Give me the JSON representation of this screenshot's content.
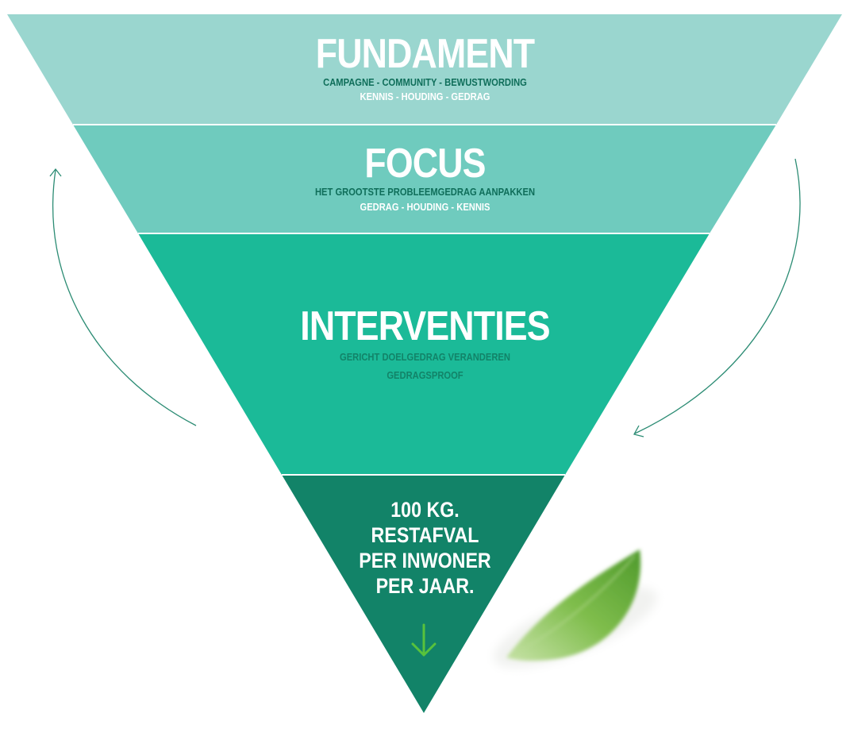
{
  "colors": {
    "tier1": "#9ad6cf",
    "tier2": "#6fcbbe",
    "tier3": "#1bba98",
    "tier4": "#128368",
    "arrow": "#2c8c74",
    "subtext_dark": "#0f6e5a",
    "subtext_white": "#ffffff",
    "down_arrow": "#58c23c",
    "leaf": "#6fae3c"
  },
  "tiers": [
    {
      "title": "FUNDAMENT",
      "lines": [
        "CAMPAGNE  -  COMMUNITY  -  BEWUSTWORDING",
        "KENNIS - HOUDING - GEDRAG"
      ]
    },
    {
      "title": "FOCUS",
      "lines": [
        "HET GROOTSTE PROBLEEMGEDRAG AANPAKKEN",
        "GEDRAG - HOUDING - KENNIS"
      ]
    },
    {
      "title": "INTERVENTIES",
      "lines": [
        "GERICHT DOELGEDRAG VERANDEREN",
        "GEDRAGSPROOF"
      ]
    }
  ],
  "goal": {
    "lines": [
      "100 KG.",
      "RESTAFVAL",
      "PER INWONER",
      "PER JAAR."
    ]
  },
  "icons": {
    "down": "down-arrow-icon",
    "leaf": "leaf-image",
    "cycle_left": "curved-arrow-up-icon",
    "cycle_right": "curved-arrow-down-icon"
  }
}
